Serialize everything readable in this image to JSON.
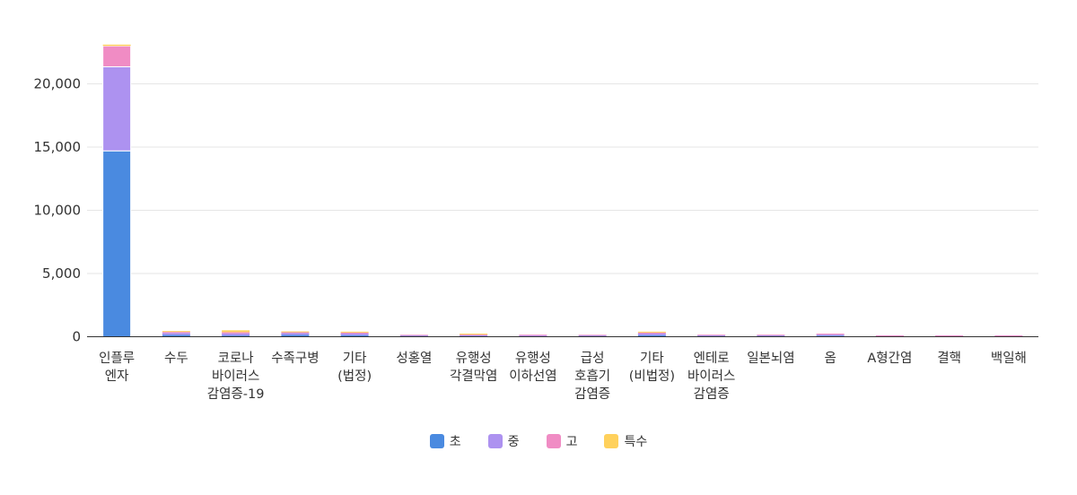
{
  "chart_data": {
    "type": "bar",
    "stacked": true,
    "categories": [
      "인플루\n엔자",
      "수두",
      "코로나\n바이러스\n감염증-19",
      "수족구병",
      "기타\n(법정)",
      "성홍열",
      "유행성\n각결막염",
      "유행성\n이하선염",
      "급성\n호흡기\n감염증",
      "기타\n(비법정)",
      "엔테로\n바이러스\n감염증",
      "일본뇌염",
      "옴",
      "A형간염",
      "결핵",
      "백일해"
    ],
    "series": [
      {
        "name": "초",
        "color": "#4a8ae0",
        "values": [
          14700,
          150,
          100,
          150,
          120,
          60,
          50,
          40,
          60,
          120,
          60,
          60,
          80,
          20,
          10,
          10
        ]
      },
      {
        "name": "중",
        "color": "#ad92f0",
        "values": [
          6650,
          150,
          160,
          140,
          130,
          20,
          50,
          50,
          20,
          130,
          30,
          30,
          90,
          20,
          30,
          30
        ]
      },
      {
        "name": "고",
        "color": "#f08cc4",
        "values": [
          1650,
          80,
          100,
          60,
          80,
          10,
          70,
          10,
          10,
          80,
          10,
          10,
          40,
          40,
          50,
          50
        ]
      },
      {
        "name": "특수",
        "color": "#ffd15c",
        "values": [
          100,
          20,
          150,
          20,
          30,
          0,
          10,
          0,
          0,
          20,
          0,
          0,
          0,
          0,
          0,
          0
        ]
      }
    ],
    "yticks": [
      "0",
      "5,000",
      "10,000",
      "15,000",
      "20,000"
    ],
    "ylim": [
      0,
      23000
    ],
    "grid": true,
    "legend_position": "bottom-center"
  }
}
